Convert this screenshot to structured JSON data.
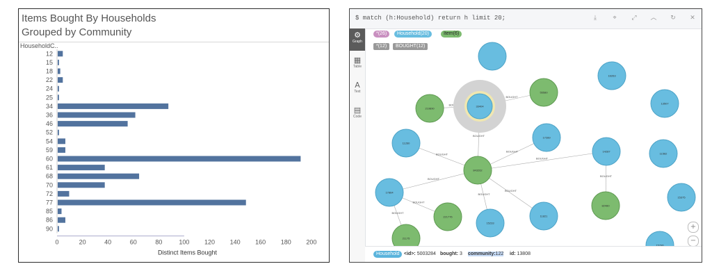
{
  "left": {
    "title_line1": "Items Bought By Households",
    "title_line2": "Grouped by Community",
    "column_header": "HouseholdC..",
    "chart_data": {
      "type": "bar",
      "orientation": "horizontal",
      "categories": [
        "12",
        "15",
        "18",
        "22",
        "24",
        "25",
        "34",
        "36",
        "46",
        "52",
        "54",
        "59",
        "60",
        "61",
        "68",
        "70",
        "72",
        "77",
        "85",
        "86",
        "90"
      ],
      "values": [
        4,
        1,
        2,
        4,
        1,
        1,
        87,
        61,
        55,
        1,
        6,
        6,
        191,
        37,
        64,
        37,
        9,
        148,
        3,
        6,
        1
      ],
      "xlabel": "Distinct Items Bought",
      "ylabel": "HouseholdC..",
      "xlim": [
        0,
        205
      ],
      "xticks": [
        0,
        20,
        40,
        60,
        80,
        100,
        120,
        140,
        160,
        180,
        200
      ],
      "bar_color": "#52739e",
      "grid": false
    }
  },
  "right": {
    "command": "$ match (h:Household) return h limit 20;",
    "sidebar": [
      {
        "label": "Graph",
        "glyph": "⚙",
        "active": true
      },
      {
        "label": "Table",
        "glyph": "▦",
        "active": false
      },
      {
        "label": "Text",
        "glyph": "A",
        "active": false
      },
      {
        "label": "Code",
        "glyph": "▤",
        "active": false
      }
    ],
    "pills": {
      "all_nodes": "*(26)",
      "household": "Household(20)",
      "item": "Item(6)",
      "all_rels": "*(12)",
      "bought": "BOUGHT(12)"
    },
    "colors": {
      "household": "#68bde0",
      "item": "#7dbb6f",
      "pill_all": "#c990c0"
    },
    "nodes": [
      {
        "id": "n-center",
        "label": "843262",
        "type": "item"
      },
      {
        "id": "n-sel",
        "label": "33404",
        "type": "household"
      },
      {
        "id": "n-i1",
        "label": "219890",
        "type": "item"
      },
      {
        "id": "n-i2",
        "label": "55580",
        "type": "item"
      },
      {
        "id": "n-h1",
        "label": "17289",
        "type": "household"
      },
      {
        "id": "n-h2",
        "label": "11260",
        "type": "household"
      },
      {
        "id": "n-h3",
        "label": "14287",
        "type": "household"
      },
      {
        "id": "n-h4",
        "label": "17864",
        "type": "household"
      },
      {
        "id": "n-h5",
        "label": "15233",
        "type": "household"
      },
      {
        "id": "n-h6",
        "label": "11821",
        "type": "household"
      },
      {
        "id": "n-i3",
        "label": "221776",
        "type": "item"
      },
      {
        "id": "n-i4",
        "label": "21175",
        "type": "item"
      },
      {
        "id": "n-i5",
        "label": "82480",
        "type": "item"
      },
      {
        "id": "n-h7",
        "label": "16263",
        "type": "household"
      },
      {
        "id": "n-h8",
        "label": "13507",
        "type": "household"
      },
      {
        "id": "n-h9",
        "label": "11562",
        "type": "household"
      },
      {
        "id": "n-h10",
        "label": "15375",
        "type": "household"
      },
      {
        "id": "n-h11",
        "label": "15796",
        "type": "household"
      },
      {
        "id": "n-h12",
        "label": "",
        "type": "household"
      },
      {
        "id": "n-h13",
        "label": "",
        "type": "household"
      }
    ],
    "edge_label": "BOUGHT",
    "status": {
      "tag": "Household",
      "id_key": "<id>:",
      "id_val": "5003284",
      "bought_key": "bought:",
      "bought_val": "3",
      "community_key": "community:",
      "community_val": "122",
      "hid_key": "id:",
      "hid_val": "13808"
    }
  }
}
